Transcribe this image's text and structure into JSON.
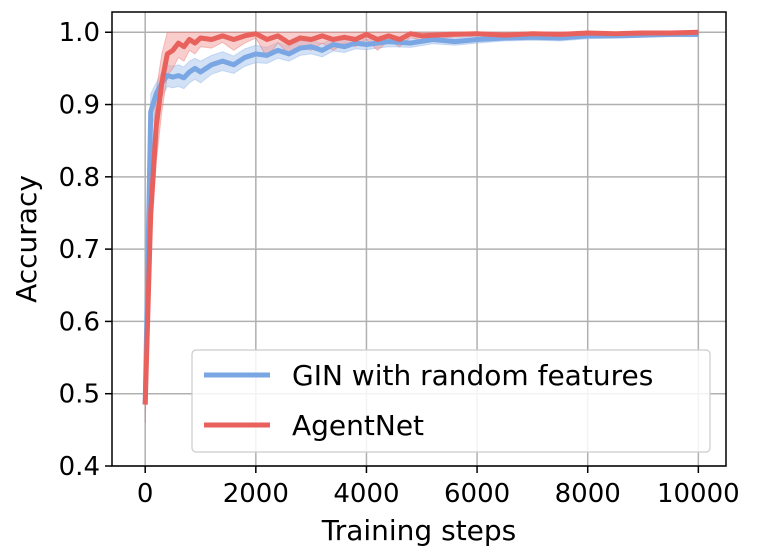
{
  "chart_data": {
    "type": "line",
    "title": "",
    "xlabel": "Training steps",
    "ylabel": "Accuracy",
    "xlim": [
      -600,
      10500
    ],
    "ylim": [
      0.4,
      1.028
    ],
    "xticks": [
      0,
      2000,
      4000,
      6000,
      8000,
      10000
    ],
    "xtick_labels": [
      "0",
      "2000",
      "4000",
      "6000",
      "8000",
      "10000"
    ],
    "yticks": [
      0.4,
      0.5,
      0.6,
      0.7,
      0.8,
      0.9,
      1.0
    ],
    "ytick_labels": [
      "0.4",
      "0.5",
      "0.6",
      "0.7",
      "0.8",
      "0.9",
      "1.0"
    ],
    "grid": true,
    "legend_position": "lower-right",
    "series": [
      {
        "name": "GIN with random features",
        "color": "#7aa6e3",
        "band_color": "#aec8ee",
        "x": [
          0,
          100,
          200,
          300,
          400,
          500,
          600,
          700,
          800,
          900,
          1000,
          1200,
          1400,
          1600,
          1800,
          2000,
          2200,
          2400,
          2600,
          2800,
          3000,
          3200,
          3400,
          3600,
          3800,
          4000,
          4400,
          4800,
          5200,
          5600,
          6000,
          6500,
          7000,
          7500,
          8000,
          8500,
          9000,
          9500,
          10000
        ],
        "y": [
          0.485,
          0.89,
          0.915,
          0.93,
          0.94,
          0.938,
          0.94,
          0.937,
          0.945,
          0.95,
          0.945,
          0.955,
          0.96,
          0.955,
          0.965,
          0.97,
          0.968,
          0.975,
          0.97,
          0.978,
          0.98,
          0.975,
          0.983,
          0.98,
          0.985,
          0.983,
          0.987,
          0.985,
          0.99,
          0.987,
          0.99,
          0.992,
          0.993,
          0.992,
          0.995,
          0.995,
          0.996,
          0.997,
          0.997
        ],
        "y_lower": [
          0.46,
          0.86,
          0.895,
          0.91,
          0.925,
          0.923,
          0.925,
          0.922,
          0.93,
          0.935,
          0.93,
          0.942,
          0.947,
          0.943,
          0.953,
          0.958,
          0.957,
          0.964,
          0.96,
          0.968,
          0.97,
          0.966,
          0.974,
          0.972,
          0.977,
          0.976,
          0.98,
          0.979,
          0.984,
          0.982,
          0.985,
          0.988,
          0.989,
          0.988,
          0.991,
          0.992,
          0.993,
          0.994,
          0.994
        ],
        "y_upper": [
          0.51,
          0.915,
          0.93,
          0.945,
          0.955,
          0.953,
          0.955,
          0.952,
          0.96,
          0.964,
          0.96,
          0.968,
          0.973,
          0.967,
          0.977,
          0.982,
          0.979,
          0.986,
          0.98,
          0.988,
          0.99,
          0.984,
          0.992,
          0.988,
          0.993,
          0.99,
          0.994,
          0.991,
          0.996,
          0.992,
          0.995,
          0.996,
          0.997,
          0.996,
          0.999,
          0.998,
          0.999,
          1.0,
          1.0
        ]
      },
      {
        "name": "AgentNet",
        "color": "#e8615c",
        "band_color": "#f2a4a1",
        "x": [
          0,
          100,
          200,
          300,
          400,
          500,
          600,
          700,
          800,
          900,
          1000,
          1200,
          1400,
          1600,
          1800,
          2000,
          2200,
          2400,
          2600,
          2800,
          3000,
          3200,
          3400,
          3600,
          3800,
          4000,
          4200,
          4400,
          4600,
          4800,
          5000,
          5500,
          6000,
          6500,
          7000,
          7500,
          8000,
          8500,
          9000,
          9500,
          10000
        ],
        "y": [
          0.485,
          0.75,
          0.87,
          0.93,
          0.97,
          0.975,
          0.985,
          0.98,
          0.99,
          0.985,
          0.992,
          0.99,
          0.995,
          0.99,
          0.995,
          0.998,
          0.99,
          0.995,
          0.985,
          0.992,
          0.99,
          0.995,
          0.99,
          0.993,
          0.99,
          0.997,
          0.99,
          0.995,
          0.99,
          0.998,
          0.995,
          0.997,
          0.998,
          0.996,
          0.998,
          0.997,
          0.999,
          0.998,
          0.999,
          0.999,
          1.0
        ],
        "y_lower": [
          0.46,
          0.7,
          0.82,
          0.89,
          0.94,
          0.95,
          0.965,
          0.96,
          0.975,
          0.97,
          0.98,
          0.978,
          0.986,
          0.975,
          0.985,
          0.992,
          0.965,
          0.985,
          0.97,
          0.98,
          0.975,
          0.985,
          0.975,
          0.985,
          0.98,
          0.99,
          0.975,
          0.988,
          0.98,
          0.993,
          0.988,
          0.993,
          0.995,
          0.992,
          0.995,
          0.994,
          0.997,
          0.996,
          0.997,
          0.997,
          0.998
        ],
        "y_upper": [
          0.51,
          0.8,
          0.92,
          0.97,
          1.0,
          1.0,
          1.0,
          1.0,
          1.0,
          1.0,
          1.0,
          1.0,
          1.0,
          1.0,
          1.0,
          1.0,
          1.0,
          1.0,
          1.0,
          1.0,
          1.0,
          1.0,
          1.0,
          1.0,
          1.0,
          1.0,
          1.0,
          1.0,
          1.0,
          1.0,
          1.0,
          1.0,
          1.0,
          1.0,
          1.0,
          1.0,
          1.0,
          1.0,
          1.0,
          1.0,
          1.0
        ]
      }
    ]
  }
}
